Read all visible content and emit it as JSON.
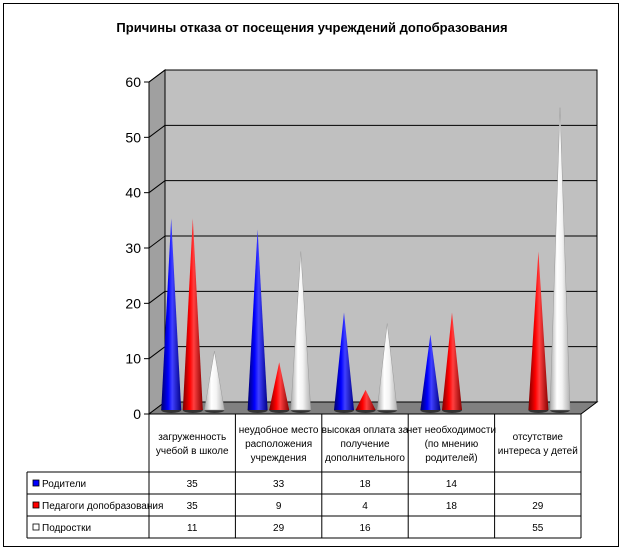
{
  "chart_data": {
    "type": "bar",
    "style": "3d-cone",
    "title": "Причины отказа от посещения учреждений допобразования",
    "categories": [
      [
        "загруженность",
        "учебой в школе"
      ],
      [
        "неудобное место",
        "расположения",
        "учреждения"
      ],
      [
        "высокая оплата за",
        "получение",
        "дополнительного"
      ],
      [
        "нет необходимости",
        "(по мнению",
        "родителей)"
      ],
      [
        "отсутствие",
        "интереса у детей"
      ]
    ],
    "series": [
      {
        "name": "Родители",
        "color": "#0000FF",
        "values": [
          35,
          33,
          18,
          14,
          null
        ]
      },
      {
        "name": "Педагоги допобразования",
        "color": "#FF0000",
        "values": [
          35,
          9,
          4,
          18,
          29
        ]
      },
      {
        "name": "Подростки",
        "color": "#FFFFFF",
        "values": [
          11,
          29,
          16,
          null,
          55
        ]
      }
    ],
    "ylim": [
      0,
      60
    ],
    "yticks": [
      0,
      10,
      20,
      30,
      40,
      50,
      60
    ],
    "grid": true,
    "legend": "data-table-below"
  }
}
